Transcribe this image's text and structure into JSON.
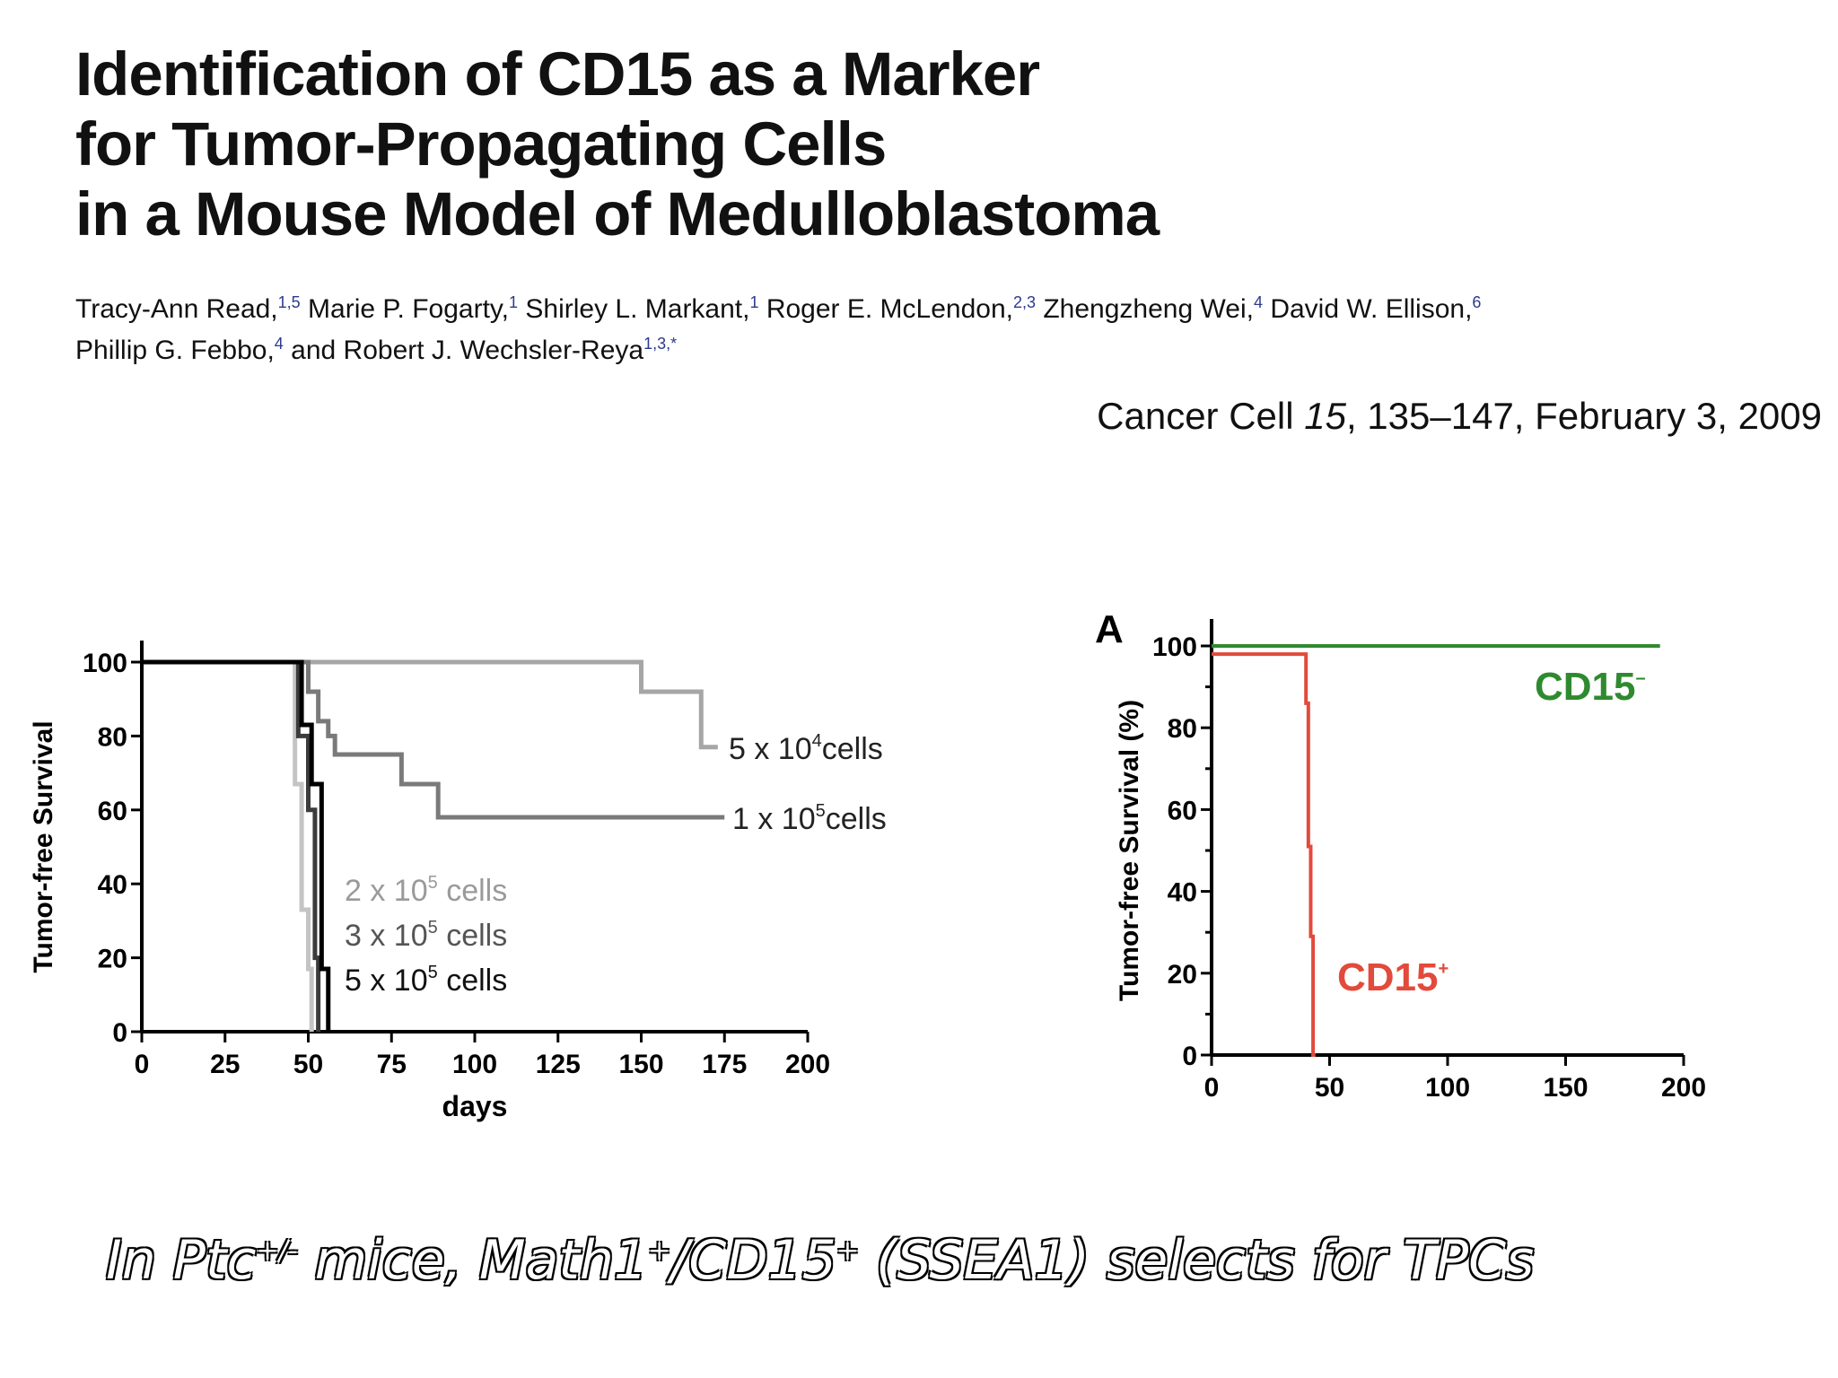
{
  "title_lines": [
    "Identification of CD15 as a Marker",
    "for Tumor-Propagating Cells",
    "in a Mouse Model of Medulloblastoma"
  ],
  "authors": [
    {
      "name": "Tracy-Ann Read,",
      "aff": "1,5"
    },
    {
      "name": "Marie P. Fogarty,",
      "aff": "1"
    },
    {
      "name": "Shirley L. Markant,",
      "aff": "1"
    },
    {
      "name": "Roger E. McLendon,",
      "aff": "2,3"
    },
    {
      "name": "Zhengzheng Wei,",
      "aff": "4"
    },
    {
      "name": "David W. Ellison,",
      "aff": "6"
    },
    {
      "name": "Phillip G. Febbo,",
      "aff": "4"
    },
    {
      "name": "and Robert J. Wechsler-Reya",
      "aff": "1,3,*"
    }
  ],
  "citation": {
    "journal": "Cancer Cell",
    "volume": "15",
    "rest": ", 135–147, February 3, 2009"
  },
  "caption": {
    "p1": "In Ptc",
    "sup1": "+/-",
    "p2": " mice, Math1",
    "sup2": "+",
    "p3": "/CD15",
    "sup3": "+",
    "p4": " (SSEA1) selects for TPCs"
  },
  "chart_data": [
    {
      "type": "line",
      "step": true,
      "xlabel": "days",
      "ylabel": "Tumor-free Survival",
      "xlim": [
        0,
        200
      ],
      "ylim": [
        0,
        100
      ],
      "xticks": [
        "0",
        "25",
        "50",
        "75",
        "100",
        "125",
        "150",
        "175",
        "200"
      ],
      "yticks": [
        "0",
        "20",
        "40",
        "60",
        "80",
        "100"
      ],
      "series": [
        {
          "name": "5 x 10⁴cells",
          "label_base": "5 x 10",
          "label_exp": "4",
          "label_unit": "cells",
          "color": "#a6a6a6",
          "x": [
            0,
            150,
            150,
            168,
            168,
            173
          ],
          "y": [
            100,
            100,
            92,
            92,
            77,
            77
          ]
        },
        {
          "name": "1 x 10⁵cells",
          "label_base": "1 x 10",
          "label_exp": "5",
          "label_unit": "cells",
          "color": "#7a7a7a",
          "x": [
            0,
            50,
            50,
            53,
            53,
            56,
            56,
            58,
            58,
            78,
            78,
            89,
            89,
            175
          ],
          "y": [
            100,
            100,
            92,
            92,
            84,
            84,
            80,
            80,
            75,
            75,
            67,
            67,
            58,
            58
          ]
        },
        {
          "name": "2 x 10⁵ cells",
          "label_base": "2 x 10",
          "label_exp": "5",
          "label_unit": " cells",
          "color": "#c4c4c4",
          "x": [
            0,
            46,
            46,
            48,
            48,
            50,
            50,
            51,
            51
          ],
          "y": [
            100,
            100,
            67,
            67,
            33,
            33,
            17,
            17,
            0
          ]
        },
        {
          "name": "3 x 10⁵ cells",
          "label_base": "3 x 10",
          "label_exp": "5",
          "label_unit": " cells",
          "color": "#3c3c3c",
          "x": [
            0,
            47,
            47,
            50,
            50,
            52,
            52,
            53,
            53
          ],
          "y": [
            100,
            100,
            80,
            80,
            60,
            60,
            20,
            20,
            0
          ]
        },
        {
          "name": "5 x 10⁵ cells",
          "label_base": "5 x 10",
          "label_exp": "5",
          "label_unit": " cells",
          "color": "#000000",
          "x": [
            0,
            48,
            48,
            51,
            51,
            54,
            54,
            56,
            56
          ],
          "y": [
            100,
            100,
            83,
            83,
            67,
            67,
            17,
            17,
            0
          ]
        }
      ]
    },
    {
      "type": "line",
      "step": true,
      "panel": "A",
      "ylabel": "Tumor-free Survival (%)",
      "xlabel": "",
      "xlim": [
        0,
        200
      ],
      "ylim": [
        0,
        100
      ],
      "xticks": [
        "0",
        "50",
        "100",
        "150",
        "200"
      ],
      "yticks": [
        "0",
        "20",
        "40",
        "60",
        "80",
        "100"
      ],
      "series": [
        {
          "name": "CD15⁻",
          "label_base": "CD15",
          "label_exp": "–",
          "color": "#2f8a2f",
          "x": [
            0,
            190
          ],
          "y": [
            100,
            100
          ]
        },
        {
          "name": "CD15⁺",
          "label_base": "CD15",
          "label_exp": "+",
          "color": "#e24a3b",
          "x": [
            0,
            40,
            40,
            41,
            41,
            42,
            42,
            43,
            43,
            44
          ],
          "y": [
            98,
            98,
            86,
            86,
            51,
            51,
            29,
            29,
            0,
            0
          ]
        }
      ]
    }
  ]
}
